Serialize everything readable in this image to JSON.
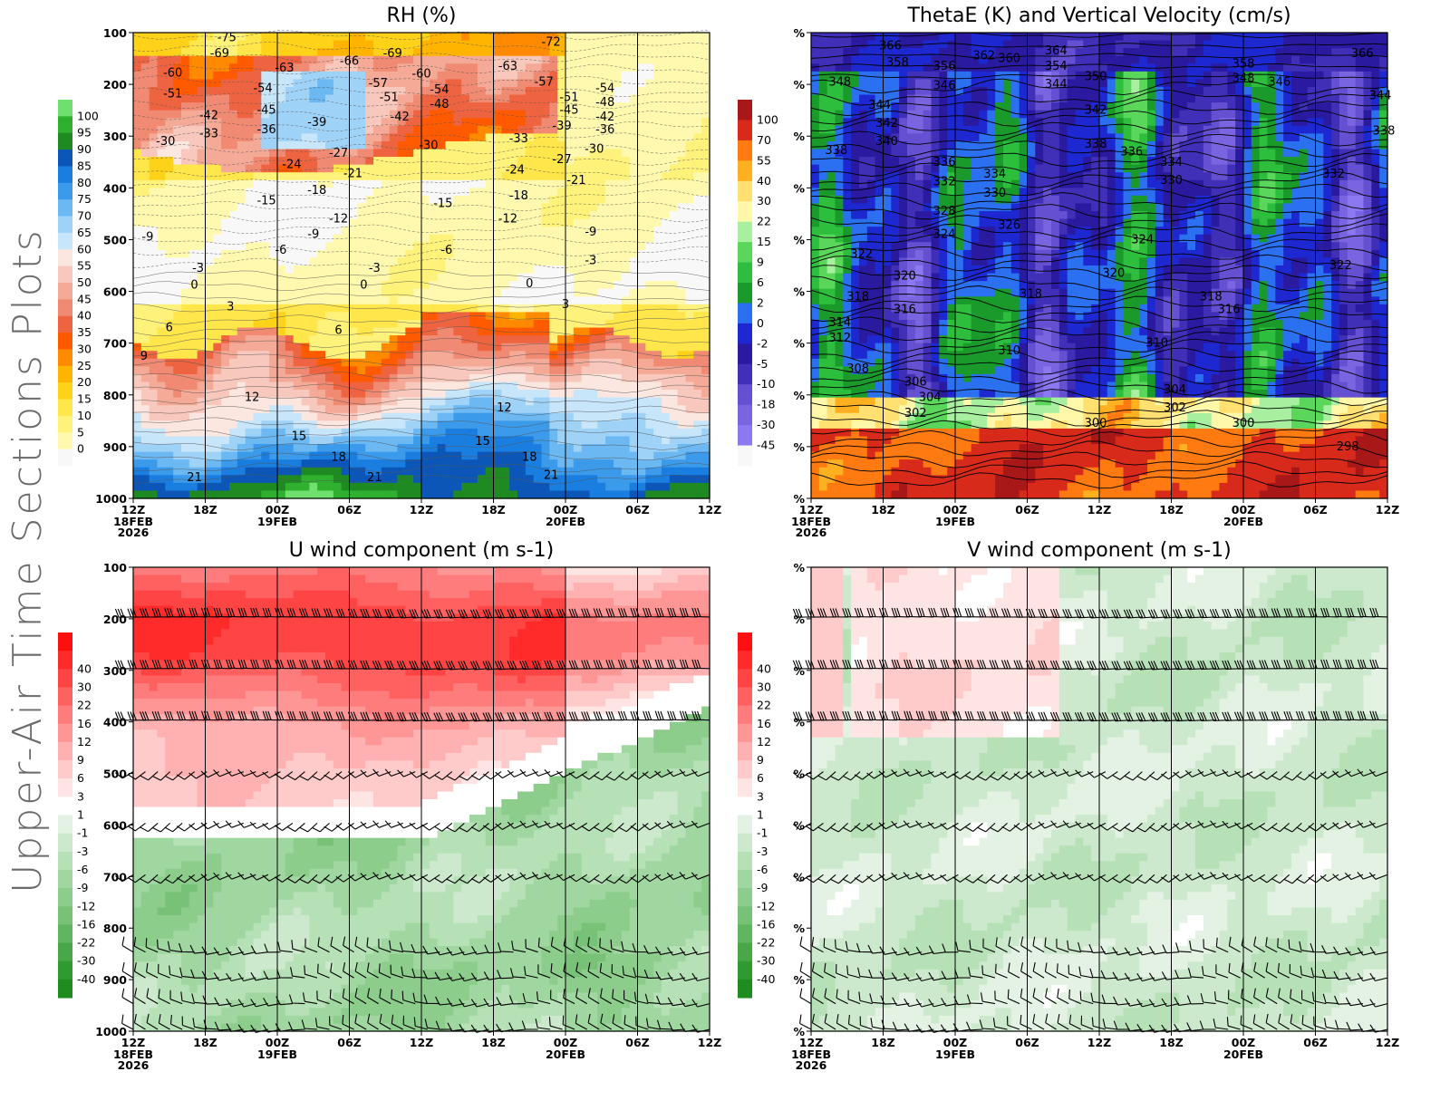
{
  "figure": {
    "side_title": "Upper-Air Time Sections Plots",
    "time_ticks": [
      "12Z",
      "18Z",
      "00Z",
      "06Z",
      "12Z",
      "18Z",
      "00Z",
      "06Z",
      "12Z"
    ],
    "date_ticks": [
      {
        "at": "12Z",
        "index": 0,
        "lines": [
          "18FEB",
          "2026"
        ]
      },
      {
        "at": "00Z",
        "index": 2,
        "lines": [
          "19FEB"
        ]
      },
      {
        "at": "00Z",
        "index": 6,
        "lines": [
          "20FEB"
        ]
      }
    ],
    "pressure_ticks_left": [
      "100",
      "200",
      "300",
      "400",
      "500",
      "600",
      "700",
      "800",
      "900",
      "1000"
    ],
    "pressure_ticks_right": [
      "%",
      "%",
      "%",
      "%",
      "%",
      "%",
      "%",
      "%",
      "%",
      "%"
    ]
  },
  "chart_data": [
    {
      "id": "rh",
      "type": "heatmap",
      "title": "RH (%)",
      "x": [
        "18FEB2026 12Z",
        "18Z",
        "19FEB 00Z",
        "06Z",
        "12Z",
        "18Z",
        "20FEB 00Z",
        "06Z",
        "12Z"
      ],
      "y_axis": {
        "values": [
          100,
          200,
          300,
          400,
          500,
          600,
          700,
          800,
          900,
          1000
        ],
        "orientation": "pressure, decreasing upward"
      },
      "colorbar": {
        "levels": [
          "0",
          "5",
          "10",
          "15",
          "20",
          "25",
          "30",
          "35",
          "40",
          "45",
          "50",
          "55",
          "60",
          "65",
          "70",
          "75",
          "80",
          "85",
          "90",
          "95",
          "100"
        ],
        "colors": [
          "#f8f8f8",
          "#fff9b0",
          "#fff27a",
          "#ffe64a",
          "#ffd21a",
          "#ffb400",
          "#ff8a00",
          "#ff5a00",
          "#ef6440",
          "#f08a72",
          "#f4aa96",
          "#f8c8bc",
          "#fce6e0",
          "#c8e6fa",
          "#9ed2f7",
          "#6cb8f2",
          "#3c9aea",
          "#1a7ee0",
          "#0c56b8",
          "#1f8a22",
          "#2fb02f",
          "#6fe06f"
        ],
        "position": "left"
      },
      "contours": {
        "quantity": "temperature (C)",
        "labels": [
          {
            "t": "-75",
            "x": 1.3,
            "p": 110
          },
          {
            "t": "-69",
            "x": 1.2,
            "p": 140
          },
          {
            "t": "-72",
            "x": 5.8,
            "p": 118
          },
          {
            "t": "-69",
            "x": 3.6,
            "p": 140
          },
          {
            "t": "-66",
            "x": 3.0,
            "p": 155
          },
          {
            "t": "-63",
            "x": 2.1,
            "p": 168
          },
          {
            "t": "-63",
            "x": 5.2,
            "p": 165
          },
          {
            "t": "-60",
            "x": 0.55,
            "p": 178
          },
          {
            "t": "-60",
            "x": 4.0,
            "p": 180
          },
          {
            "t": "-57",
            "x": 3.4,
            "p": 198
          },
          {
            "t": "-57",
            "x": 5.7,
            "p": 195
          },
          {
            "t": "-54",
            "x": 1.8,
            "p": 208
          },
          {
            "t": "-54",
            "x": 4.25,
            "p": 210
          },
          {
            "t": "-54",
            "x": 6.55,
            "p": 208
          },
          {
            "t": "-51",
            "x": 0.55,
            "p": 218
          },
          {
            "t": "-51",
            "x": 3.55,
            "p": 225
          },
          {
            "t": "-51",
            "x": 6.05,
            "p": 225
          },
          {
            "t": "-48",
            "x": 4.25,
            "p": 238
          },
          {
            "t": "-48",
            "x": 6.55,
            "p": 235
          },
          {
            "t": "-45",
            "x": 1.85,
            "p": 250
          },
          {
            "t": "-45",
            "x": 6.05,
            "p": 250
          },
          {
            "t": "-42",
            "x": 1.05,
            "p": 260
          },
          {
            "t": "-42",
            "x": 3.7,
            "p": 263
          },
          {
            "t": "-42",
            "x": 6.55,
            "p": 263
          },
          {
            "t": "-39",
            "x": 2.55,
            "p": 273
          },
          {
            "t": "-39",
            "x": 5.95,
            "p": 280
          },
          {
            "t": "-36",
            "x": 1.85,
            "p": 287
          },
          {
            "t": "-36",
            "x": 6.55,
            "p": 287
          },
          {
            "t": "-33",
            "x": 1.05,
            "p": 295
          },
          {
            "t": "-33",
            "x": 5.35,
            "p": 305
          },
          {
            "t": "-30",
            "x": 0.45,
            "p": 310
          },
          {
            "t": "-30",
            "x": 4.1,
            "p": 318
          },
          {
            "t": "-30",
            "x": 6.4,
            "p": 325
          },
          {
            "t": "-27",
            "x": 2.85,
            "p": 333
          },
          {
            "t": "-27",
            "x": 5.95,
            "p": 345
          },
          {
            "t": "-24",
            "x": 2.2,
            "p": 355
          },
          {
            "t": "-24",
            "x": 5.3,
            "p": 365
          },
          {
            "t": "-21",
            "x": 3.05,
            "p": 372
          },
          {
            "t": "-21",
            "x": 6.15,
            "p": 385
          },
          {
            "t": "-18",
            "x": 2.55,
            "p": 405
          },
          {
            "t": "-18",
            "x": 5.35,
            "p": 415
          },
          {
            "t": "-15",
            "x": 1.85,
            "p": 425
          },
          {
            "t": "-15",
            "x": 4.3,
            "p": 430
          },
          {
            "t": "-12",
            "x": 2.85,
            "p": 460
          },
          {
            "t": "-12",
            "x": 5.2,
            "p": 460
          },
          {
            "t": "-9",
            "x": 0.2,
            "p": 495
          },
          {
            "t": "-9",
            "x": 2.5,
            "p": 490
          },
          {
            "t": "-9",
            "x": 6.35,
            "p": 485
          },
          {
            "t": "-6",
            "x": 2.05,
            "p": 520
          },
          {
            "t": "-6",
            "x": 4.35,
            "p": 520
          },
          {
            "t": "-3",
            "x": 0.9,
            "p": 555
          },
          {
            "t": "-3",
            "x": 3.35,
            "p": 555
          },
          {
            "t": "-3",
            "x": 6.35,
            "p": 540
          },
          {
            "t": "0",
            "x": 0.85,
            "p": 588
          },
          {
            "t": "0",
            "x": 3.2,
            "p": 588
          },
          {
            "t": "0",
            "x": 5.5,
            "p": 585
          },
          {
            "t": "3",
            "x": 1.35,
            "p": 630
          },
          {
            "t": "3",
            "x": 6.0,
            "p": 625
          },
          {
            "t": "6",
            "x": 0.5,
            "p": 670
          },
          {
            "t": "6",
            "x": 2.85,
            "p": 675
          },
          {
            "t": "9",
            "x": 0.15,
            "p": 725
          },
          {
            "t": "12",
            "x": 1.65,
            "p": 805
          },
          {
            "t": "12",
            "x": 5.15,
            "p": 825
          },
          {
            "t": "15",
            "x": 2.3,
            "p": 880
          },
          {
            "t": "15",
            "x": 4.85,
            "p": 890
          },
          {
            "t": "18",
            "x": 2.85,
            "p": 920
          },
          {
            "t": "18",
            "x": 5.5,
            "p": 920
          },
          {
            "t": "21",
            "x": 0.85,
            "p": 960
          },
          {
            "t": "21",
            "x": 3.35,
            "p": 960
          },
          {
            "t": "21",
            "x": 5.8,
            "p": 955
          }
        ]
      }
    },
    {
      "id": "thetae",
      "type": "heatmap",
      "title": "ThetaE (K) and Vertical Velocity (cm/s)",
      "x": [
        "18FEB2026 12Z",
        "18Z",
        "19FEB 00Z",
        "06Z",
        "12Z",
        "18Z",
        "20FEB 00Z",
        "06Z",
        "12Z"
      ],
      "y_axis": {
        "values": [
          100,
          200,
          300,
          400,
          500,
          600,
          700,
          800,
          900,
          1000
        ],
        "tick_labels": "%"
      },
      "colorbar": {
        "levels": [
          "-45",
          "-30",
          "-18",
          "-10",
          "-5",
          "-2",
          "0",
          "2",
          "6",
          "9",
          "15",
          "22",
          "30",
          "40",
          "55",
          "70",
          "100"
        ],
        "colors": [
          "#f8f8f8",
          "#8c78f0",
          "#7a64e0",
          "#6450d0",
          "#4030b8",
          "#2a1aa0",
          "#1e28d0",
          "#2a70f0",
          "#1a9a2a",
          "#2cbe3c",
          "#5ad65a",
          "#a8f0a0",
          "#fff8a8",
          "#ffe070",
          "#ffb020",
          "#ff7a10",
          "#d82a1a",
          "#a81818"
        ],
        "position": "left"
      },
      "contours": {
        "quantity": "theta-e (K)",
        "labels": [
          {
            "t": "366",
            "x": 1.1,
            "p": 125
          },
          {
            "t": "366",
            "x": 7.65,
            "p": 140
          },
          {
            "t": "364",
            "x": 3.4,
            "p": 135
          },
          {
            "t": "358",
            "x": 1.2,
            "p": 158
          },
          {
            "t": "356",
            "x": 1.85,
            "p": 165
          },
          {
            "t": "362",
            "x": 2.4,
            "p": 145
          },
          {
            "t": "360",
            "x": 2.75,
            "p": 150
          },
          {
            "t": "358",
            "x": 6.0,
            "p": 160
          },
          {
            "t": "354",
            "x": 3.4,
            "p": 165
          },
          {
            "t": "350",
            "x": 3.95,
            "p": 185
          },
          {
            "t": "348",
            "x": 6.0,
            "p": 188
          },
          {
            "t": "346",
            "x": 6.5,
            "p": 195
          },
          {
            "t": "346",
            "x": 1.85,
            "p": 202
          },
          {
            "t": "344",
            "x": 3.4,
            "p": 200
          },
          {
            "t": "348",
            "x": 0.4,
            "p": 195
          },
          {
            "t": "344",
            "x": 0.95,
            "p": 240
          },
          {
            "t": "344",
            "x": 7.9,
            "p": 222
          },
          {
            "t": "342",
            "x": 1.05,
            "p": 275
          },
          {
            "t": "342",
            "x": 3.95,
            "p": 250
          },
          {
            "t": "340",
            "x": 1.05,
            "p": 310
          },
          {
            "t": "338",
            "x": 7.95,
            "p": 290
          },
          {
            "t": "338",
            "x": 0.35,
            "p": 328
          },
          {
            "t": "338",
            "x": 3.95,
            "p": 315
          },
          {
            "t": "336",
            "x": 4.45,
            "p": 330
          },
          {
            "t": "336",
            "x": 1.85,
            "p": 350
          },
          {
            "t": "334",
            "x": 2.55,
            "p": 373
          },
          {
            "t": "334",
            "x": 5.0,
            "p": 350
          },
          {
            "t": "332",
            "x": 1.85,
            "p": 388
          },
          {
            "t": "332",
            "x": 7.25,
            "p": 373
          },
          {
            "t": "330",
            "x": 2.55,
            "p": 410
          },
          {
            "t": "330",
            "x": 5.0,
            "p": 385
          },
          {
            "t": "328",
            "x": 1.85,
            "p": 445
          },
          {
            "t": "326",
            "x": 2.75,
            "p": 472
          },
          {
            "t": "324",
            "x": 1.85,
            "p": 490
          },
          {
            "t": "324",
            "x": 4.6,
            "p": 500
          },
          {
            "t": "322",
            "x": 0.7,
            "p": 528
          },
          {
            "t": "322",
            "x": 7.35,
            "p": 550
          },
          {
            "t": "320",
            "x": 1.3,
            "p": 570
          },
          {
            "t": "320",
            "x": 4.2,
            "p": 565
          },
          {
            "t": "318",
            "x": 0.65,
            "p": 610
          },
          {
            "t": "318",
            "x": 3.05,
            "p": 605
          },
          {
            "t": "318",
            "x": 5.55,
            "p": 610
          },
          {
            "t": "316",
            "x": 1.3,
            "p": 635
          },
          {
            "t": "316",
            "x": 5.8,
            "p": 635
          },
          {
            "t": "314",
            "x": 0.4,
            "p": 660
          },
          {
            "t": "312",
            "x": 0.4,
            "p": 690
          },
          {
            "t": "310",
            "x": 2.75,
            "p": 715
          },
          {
            "t": "310",
            "x": 4.8,
            "p": 700
          },
          {
            "t": "308",
            "x": 0.65,
            "p": 750
          },
          {
            "t": "306",
            "x": 1.45,
            "p": 775
          },
          {
            "t": "304",
            "x": 1.65,
            "p": 805
          },
          {
            "t": "304",
            "x": 5.05,
            "p": 790
          },
          {
            "t": "302",
            "x": 1.45,
            "p": 835
          },
          {
            "t": "302",
            "x": 5.05,
            "p": 825
          },
          {
            "t": "300",
            "x": 3.95,
            "p": 855
          },
          {
            "t": "300",
            "x": 6.0,
            "p": 855
          },
          {
            "t": "298",
            "x": 7.45,
            "p": 900
          }
        ]
      }
    },
    {
      "id": "u",
      "type": "heatmap",
      "title": "U wind component (m s-1)",
      "x": [
        "18FEB2026 12Z",
        "18Z",
        "19FEB 00Z",
        "06Z",
        "12Z",
        "18Z",
        "20FEB 00Z",
        "06Z",
        "12Z"
      ],
      "y_axis": {
        "values": [
          100,
          200,
          300,
          400,
          500,
          600,
          700,
          800,
          900,
          1000
        ]
      },
      "colorbar": {
        "levels": [
          "-40",
          "-30",
          "-22",
          "-16",
          "-12",
          "-9",
          "-6",
          "-3",
          "-1",
          "1",
          "3",
          "6",
          "9",
          "12",
          "16",
          "22",
          "30",
          "40"
        ],
        "colors": [
          "#1f8c1f",
          "#2f9a2f",
          "#48a848",
          "#60b660",
          "#78c278",
          "#8ccd8c",
          "#a0d6a0",
          "#b6e0b6",
          "#cde9cd",
          "#e4f2e4",
          "#ffffff",
          "#ffe4e4",
          "#ffcaca",
          "#ffb0b0",
          "#ff9696",
          "#ff7c7c",
          "#ff6060",
          "#ff4444",
          "#ff2a2a",
          "#ff1010"
        ],
        "position": "left"
      },
      "barb_levels": [
        200,
        300,
        400,
        500,
        600,
        700,
        850,
        900,
        950,
        1000
      ]
    },
    {
      "id": "v",
      "type": "heatmap",
      "title": "V wind component (m s-1)",
      "x": [
        "18FEB2026 12Z",
        "18Z",
        "19FEB 00Z",
        "06Z",
        "12Z",
        "18Z",
        "20FEB 00Z",
        "06Z",
        "12Z"
      ],
      "y_axis": {
        "values": [
          100,
          200,
          300,
          400,
          500,
          600,
          700,
          800,
          900,
          1000
        ],
        "tick_labels": "%"
      },
      "colorbar": {
        "levels": [
          "-40",
          "-30",
          "-22",
          "-16",
          "-12",
          "-9",
          "-6",
          "-3",
          "-1",
          "1",
          "3",
          "6",
          "9",
          "12",
          "16",
          "22",
          "30",
          "40"
        ],
        "colors": [
          "#1f8c1f",
          "#2f9a2f",
          "#48a848",
          "#60b660",
          "#78c278",
          "#8ccd8c",
          "#a0d6a0",
          "#b6e0b6",
          "#cde9cd",
          "#e4f2e4",
          "#ffffff",
          "#ffe4e4",
          "#ffcaca",
          "#ffb0b0",
          "#ff9696",
          "#ff7c7c",
          "#ff6060",
          "#ff4444",
          "#ff2a2a",
          "#ff1010"
        ],
        "position": "left"
      },
      "barb_levels": [
        200,
        300,
        400,
        500,
        600,
        700,
        850,
        900,
        950,
        1000
      ]
    }
  ]
}
